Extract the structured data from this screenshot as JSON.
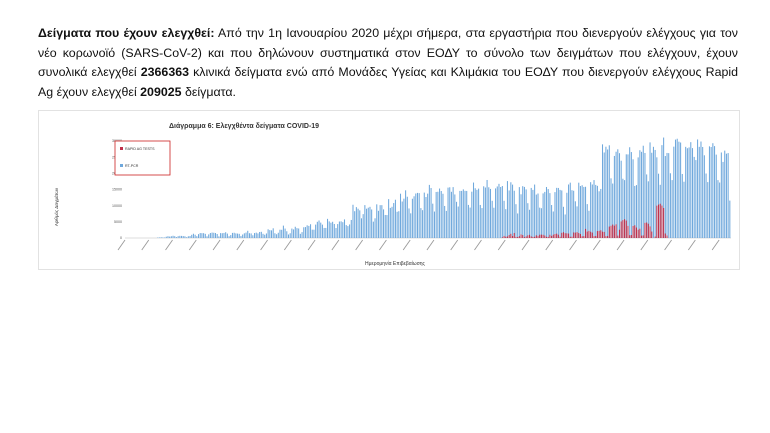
{
  "paragraph": {
    "lead": "Δείγματα που έχουν ελεγχθεί:",
    "text1": " Από την 1η Ιανουαρίου 2020 μέχρι σήμερα, στα εργαστήρια που διενεργούν ελέγχους για τον νέο κορωνοϊό (SARS-CoV-2) και που δηλώνουν συστηματικά στον ΕΟΔΥ το σύνολο των δειγμάτων που ελέγχουν, έχουν συνολικά ελεγχθεί ",
    "pcr_total": "2366363",
    "text2": " κλινικά δείγματα ενώ από Μονάδες Υγείας και Κλιμάκια του ΕΟΔΥ που διενεργούν ελέγχους Rapid Ag έχουν ελεγχθεί ",
    "rapid_total": "209025",
    "text3": " δείγματα."
  },
  "chart_data": {
    "type": "bar",
    "title": "Διάγραμμα 6: Ελεγχθέντα δείγματα COVID-19",
    "xlabel": "Ημερομηνία Επιβεβαίωσης",
    "ylabel": "Αριθμός Δειγμάτων",
    "ylim": [
      0,
      30000
    ],
    "yticks": [
      "0",
      "5000",
      "10000",
      "15000",
      "20000",
      "25000",
      "30000"
    ],
    "legend_position": "top-left",
    "colors": {
      "rt_pcr": "#6fa8dc",
      "rapid": "#c0304a"
    },
    "series": [
      {
        "name": "RAPID AG TESTS",
        "start_index": 222,
        "values": [
          210,
          640,
          400,
          480,
          900,
          1300,
          620,
          1560,
          350,
          300,
          580,
          1110,
          900,
          260,
          500,
          830,
          990,
          500,
          340,
          370,
          830,
          650,
          1020,
          1040,
          990,
          760,
          360,
          360,
          1010,
          640,
          1010,
          1240,
          1350,
          1020,
          380,
          1600,
          1800,
          1490,
          1450,
          1370,
          390,
          410,
          1710,
          1660,
          1810,
          1530,
          1250,
          550,
          590,
          2820,
          1980,
          2200,
          1940,
          1670,
          580,
          630,
          2140,
          2210,
          2380,
          1950,
          1890,
          580,
          630,
          3540,
          3780,
          4160,
          3800,
          4230,
          730,
          2560,
          5120,
          5530,
          5810,
          5400,
          3740,
          860,
          920,
          3710,
          3940,
          3240,
          2560,
          2880,
          740,
          810,
          4690,
          4790,
          4420,
          3590,
          2000,
          0,
          460,
          10000,
          10330,
          10600,
          10030,
          9280,
          1400,
          770
        ]
      },
      {
        "name": "RT-PCR",
        "start_index": 0,
        "values": [
          0,
          0,
          0,
          0,
          0,
          0,
          0,
          0,
          0,
          0,
          0,
          0,
          0,
          0,
          0,
          0,
          0,
          0,
          0,
          150,
          160,
          220,
          170,
          150,
          400,
          560,
          440,
          540,
          690,
          570,
          280,
          570,
          670,
          650,
          600,
          530,
          240,
          540,
          620,
          990,
          1320,
          1010,
          570,
          1190,
          1530,
          1500,
          1490,
          1290,
          530,
          1120,
          1550,
          1680,
          1620,
          1540,
          1240,
          510,
          1510,
          1480,
          1560,
          1780,
          1370,
          570,
          910,
          1580,
          1620,
          1430,
          1370,
          1290,
          630,
          1080,
          1450,
          1670,
          2230,
          1480,
          1420,
          840,
          1530,
          1660,
          1420,
          1860,
          1910,
          1300,
          1010,
          1400,
          2690,
          2440,
          2370,
          3000,
          1470,
          1160,
          1620,
          2560,
          2540,
          3830,
          2920,
          2080,
          1090,
          1470,
          2920,
          2660,
          3480,
          3050,
          2940,
          1290,
          1820,
          3320,
          3380,
          3920,
          3740,
          4260,
          2580,
          2570,
          4140,
          5010,
          5420,
          4760,
          4140,
          3110,
          3110,
          5920,
          5140,
          4730,
          5020,
          4340,
          3080,
          4310,
          5100,
          5150,
          4890,
          5750,
          4000,
          3680,
          4190,
          5580,
          10280,
          8290,
          9550,
          9060,
          8550,
          6090,
          7380,
          10170,
          9060,
          9370,
          9640,
          8820,
          5060,
          6090,
          10410,
          8410,
          10160,
          10160,
          8850,
          7130,
          7100,
          12020,
          9310,
          9650,
          10810,
          11840,
          8110,
          8290,
          13700,
          11290,
          12170,
          14750,
          12760,
          9140,
          7630,
          12140,
          12900,
          13760,
          13950,
          13880,
          9250,
          8610,
          14040,
          12670,
          13720,
          16430,
          15460,
          10620,
          8180,
          14240,
          14300,
          15300,
          14530,
          13680,
          9910,
          8380,
          15580,
          15690,
          14290,
          15740,
          13470,
          11190,
          9730,
          14570,
          14570,
          15040,
          14590,
          14560,
          10230,
          9410,
          14330,
          17150,
          15390,
          14890,
          15270,
          10220,
          9260,
          15990,
          15610,
          17940,
          15690,
          15180,
          11510,
          9360,
          15340,
          15940,
          16750,
          15770,
          16080,
          11510,
          8920,
          17600,
          14710,
          17240,
          16510,
          14620,
          10460,
          7590,
          15740,
          13520,
          16030,
          15800,
          15030,
          10770,
          8730,
          15490,
          14880,
          16530,
          13430,
          13760,
          9390,
          9210,
          13800,
          14260,
          15780,
          15140,
          13880,
          10200,
          8200,
          14190,
          15510,
          15480,
          14880,
          14710,
          9650,
          7280,
          13990,
          16550,
          17120,
          14790,
          14620,
          11350,
          9780,
          17110,
          16070,
          16310,
          15790,
          15840,
          10480,
          8420,
          17270,
          16550,
          17910,
          16420,
          16130,
          14450,
          15170,
          28960,
          26450,
          28230,
          27380,
          28670,
          18460,
          16840,
          25380,
          26680,
          27440,
          26230,
          23910,
          18330,
          17900,
          25880,
          25850,
          28070,
          26580,
          24340,
          16100,
          16360,
          24930,
          27150,
          26650,
          28540,
          26300,
          19660,
          17530,
          29570,
          26360,
          28200,
          27230,
          24950,
          19890,
          16450,
          28720,
          31070,
          25350,
          26300,
          26250,
          20020,
          17910,
          28250,
          30430,
          30700,
          29790,
          29530,
          19800,
          17400,
          28190,
          27760,
          28010,
          29640,
          27800,
          25090,
          24100,
          30480,
          28190,
          29840,
          28150,
          25580,
          19940,
          17290,
          28350,
          28150,
          29320,
          28420,
          25790,
          17900,
          17160,
          26450,
          23530,
          27030,
          26080,
          26270,
          11570
        ]
      }
    ]
  }
}
